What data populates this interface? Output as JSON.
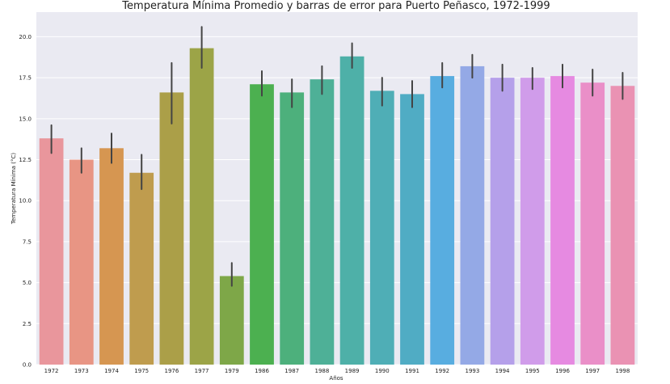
{
  "chart_data": {
    "type": "bar",
    "title": "Temperatura Mínima Promedio y barras de error para Puerto Peñasco, 1972-1999",
    "xlabel": "Años",
    "ylabel": "Temperatura Mínima (°C)",
    "ylim": [
      0,
      21.5
    ],
    "yticks": [
      0.0,
      2.5,
      5.0,
      7.5,
      10.0,
      12.5,
      15.0,
      17.5,
      20.0
    ],
    "ytick_labels": [
      "0.0",
      "2.5",
      "5.0",
      "7.5",
      "10.0",
      "12.5",
      "15.0",
      "17.5",
      "20.0"
    ],
    "grid": true,
    "legend": "none",
    "background": "#eaeaf2",
    "error_color": "#444444",
    "categories": [
      "1972",
      "1973",
      "1974",
      "1975",
      "1976",
      "1977",
      "1979",
      "1986",
      "1987",
      "1988",
      "1989",
      "1990",
      "1991",
      "1992",
      "1993",
      "1994",
      "1995",
      "1996",
      "1997",
      "1998"
    ],
    "values": [
      13.8,
      12.5,
      13.2,
      11.7,
      16.6,
      19.3,
      5.4,
      17.1,
      16.6,
      17.4,
      18.8,
      16.7,
      16.5,
      17.6,
      18.2,
      17.5,
      17.5,
      17.6,
      17.2,
      17.0
    ],
    "error_low": [
      12.9,
      11.7,
      12.3,
      10.7,
      14.7,
      18.1,
      4.8,
      16.4,
      15.7,
      16.5,
      18.1,
      15.8,
      15.7,
      16.9,
      17.5,
      16.7,
      16.8,
      16.9,
      16.4,
      16.2
    ],
    "error_high": [
      14.6,
      13.2,
      14.1,
      12.8,
      18.4,
      20.6,
      6.2,
      17.9,
      17.4,
      18.2,
      19.6,
      17.5,
      17.3,
      18.4,
      18.9,
      18.3,
      18.1,
      18.3,
      18.0,
      17.8
    ],
    "colors": [
      "#e9969c",
      "#e89584",
      "#d69651",
      "#bf9c4e",
      "#ab9f48",
      "#9ca447",
      "#7ea748",
      "#4cb050",
      "#4db07c",
      "#4eb097",
      "#4eb0a8",
      "#4faeb6",
      "#50acc4",
      "#58ade0",
      "#94a9e6",
      "#b5a0ea",
      "#d09cea",
      "#e68ae1",
      "#ea8fc8",
      "#ea92b3"
    ]
  }
}
